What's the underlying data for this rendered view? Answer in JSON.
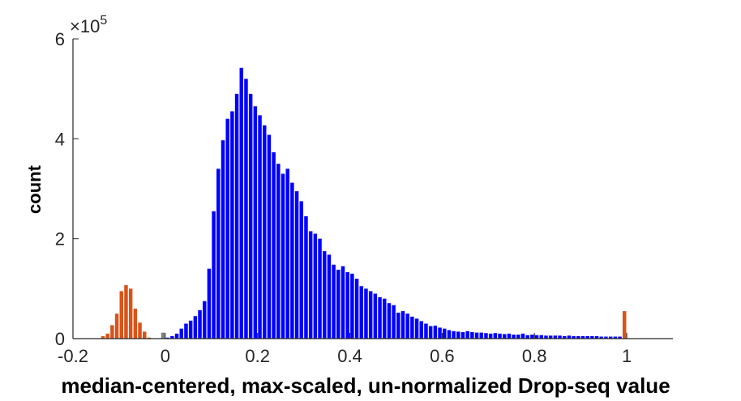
{
  "chart_data": {
    "type": "bar",
    "xlabel": "median-centered, max-scaled, un-normalized Drop-seq value",
    "ylabel": "count",
    "y_exponent_label": "×10",
    "y_exponent_power": "5",
    "xlim": [
      -0.2,
      1.1
    ],
    "ylim": [
      0,
      6
    ],
    "y_scale_factor": 100000,
    "xticks": [
      -0.2,
      0,
      0.2,
      0.4,
      0.6,
      0.8,
      1
    ],
    "xtick_labels": [
      "-0.2",
      "0",
      "0.2",
      "0.4",
      "0.6",
      "0.8",
      "1"
    ],
    "yticks": [
      0,
      2,
      4,
      6
    ],
    "ytick_labels": [
      "0",
      "2",
      "4",
      "6"
    ],
    "grid": false,
    "bin_width": 0.01,
    "series": [
      {
        "color": "#D95319",
        "x": [
          -0.135,
          -0.125,
          -0.115,
          -0.105,
          -0.095,
          -0.085,
          -0.075,
          -0.065,
          -0.055,
          -0.045,
          -0.035,
          0.995
        ],
        "values": [
          0.05,
          0.1,
          0.27,
          0.5,
          0.95,
          1.07,
          1.0,
          0.6,
          0.32,
          0.14,
          0.02,
          0.55
        ]
      },
      {
        "color": "#808080",
        "x": [
          -0.005
        ],
        "values": [
          0.12
        ]
      },
      {
        "color": "#0000FF",
        "x": [
          0.005,
          0.015,
          0.025,
          0.035,
          0.045,
          0.055,
          0.065,
          0.075,
          0.085,
          0.095,
          0.105,
          0.115,
          0.125,
          0.135,
          0.145,
          0.155,
          0.165,
          0.175,
          0.185,
          0.195,
          0.205,
          0.215,
          0.225,
          0.235,
          0.245,
          0.255,
          0.265,
          0.275,
          0.285,
          0.295,
          0.305,
          0.315,
          0.325,
          0.335,
          0.345,
          0.355,
          0.365,
          0.375,
          0.385,
          0.395,
          0.405,
          0.415,
          0.425,
          0.435,
          0.445,
          0.455,
          0.465,
          0.475,
          0.485,
          0.495,
          0.505,
          0.515,
          0.525,
          0.535,
          0.545,
          0.555,
          0.565,
          0.575,
          0.585,
          0.595,
          0.605,
          0.615,
          0.625,
          0.635,
          0.645,
          0.655,
          0.665,
          0.675,
          0.685,
          0.695,
          0.705,
          0.715,
          0.725,
          0.735,
          0.745,
          0.755,
          0.765,
          0.775,
          0.785,
          0.795,
          0.805,
          0.815,
          0.825,
          0.835,
          0.845,
          0.855,
          0.865,
          0.875,
          0.885,
          0.895,
          0.905,
          0.915,
          0.925,
          0.935,
          0.945,
          0.955,
          0.965,
          0.975,
          0.985
        ],
        "values": [
          0.02,
          0.05,
          0.1,
          0.2,
          0.3,
          0.36,
          0.45,
          0.57,
          0.75,
          1.4,
          2.55,
          3.4,
          3.97,
          4.4,
          4.55,
          4.9,
          5.42,
          5.2,
          4.9,
          4.65,
          4.47,
          4.27,
          4.08,
          3.73,
          3.5,
          3.3,
          3.4,
          3.12,
          2.95,
          2.75,
          2.45,
          2.15,
          2.1,
          2.0,
          1.75,
          1.68,
          1.48,
          1.38,
          1.45,
          1.33,
          1.3,
          1.2,
          1.05,
          1.0,
          0.95,
          0.9,
          0.83,
          0.8,
          0.71,
          0.67,
          0.52,
          0.55,
          0.5,
          0.44,
          0.4,
          0.35,
          0.3,
          0.25,
          0.26,
          0.22,
          0.2,
          0.17,
          0.15,
          0.14,
          0.13,
          0.15,
          0.13,
          0.12,
          0.12,
          0.11,
          0.1,
          0.11,
          0.1,
          0.09,
          0.1,
          0.08,
          0.08,
          0.1,
          0.07,
          0.08,
          0.07,
          0.07,
          0.06,
          0.06,
          0.06,
          0.06,
          0.05,
          0.06,
          0.05,
          0.05,
          0.05,
          0.05,
          0.05,
          0.05,
          0.04,
          0.04,
          0.04,
          0.04,
          0.04
        ]
      }
    ]
  }
}
